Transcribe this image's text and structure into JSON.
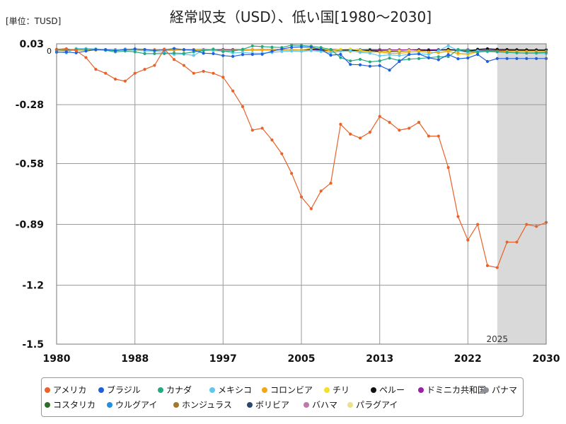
{
  "chart_data": {
    "type": "line",
    "title": "経常収支（USD）、低い国[1980～2030]",
    "unit_label": "[単位：TUSD]",
    "x_ticks": [
      1980,
      1988,
      1997,
      2005,
      2013,
      2022,
      2030
    ],
    "y_ticks": [
      {
        "value": 0.03,
        "label": "0.03"
      },
      {
        "value": -0.28,
        "label": "-0.28"
      },
      {
        "value": -0.58,
        "label": "-0.58"
      },
      {
        "value": -0.89,
        "label": "-0.89"
      },
      {
        "value": -1.2,
        "label": "-1.2"
      },
      {
        "value": -1.5,
        "label": "-1.5"
      }
    ],
    "xlim": [
      1980,
      2030
    ],
    "ylim": [
      -1.5,
      0.03
    ],
    "zero_label": "0",
    "forecast_start": 2025,
    "forecast_label": "2025",
    "grid": true,
    "legend_position": "bottom",
    "series": [
      {
        "name": "アメリカ",
        "color": "#e8622a",
        "values": [
          0.002,
          0.005,
          -0.005,
          -0.04,
          -0.1,
          -0.12,
          -0.15,
          -0.16,
          -0.12,
          -0.1,
          -0.08,
          0.003,
          -0.05,
          -0.08,
          -0.12,
          -0.11,
          -0.12,
          -0.14,
          -0.21,
          -0.29,
          -0.41,
          -0.4,
          -0.46,
          -0.53,
          -0.63,
          -0.75,
          -0.81,
          -0.72,
          -0.68,
          -0.38,
          -0.43,
          -0.45,
          -0.42,
          -0.34,
          -0.37,
          -0.41,
          -0.4,
          -0.37,
          -0.44,
          -0.44,
          -0.6,
          -0.85,
          -0.97,
          -0.89,
          -1.1,
          -1.11,
          -0.98,
          -0.98,
          -0.89,
          -0.9,
          -0.88
        ]
      },
      {
        "name": "ブラジル",
        "color": "#1f5fdc",
        "values": [
          -0.013,
          -0.012,
          -0.016,
          -0.007,
          0.0,
          -0.0,
          -0.005,
          -0.0,
          0.004,
          0.001,
          -0.004,
          -0.001,
          0.006,
          -0.0,
          -0.002,
          -0.018,
          -0.02,
          -0.03,
          -0.034,
          -0.025,
          -0.024,
          -0.023,
          -0.008,
          0.004,
          0.012,
          0.014,
          0.013,
          0.001,
          -0.028,
          -0.024,
          -0.075,
          -0.077,
          -0.084,
          -0.081,
          -0.104,
          -0.06,
          -0.024,
          -0.022,
          -0.041,
          -0.051,
          -0.025,
          -0.046,
          -0.042,
          -0.024,
          -0.06,
          -0.045,
          -0.045,
          -0.045,
          -0.045,
          -0.045,
          -0.045
        ]
      },
      {
        "name": "カナダ",
        "color": "#26a880",
        "values": [
          -0.002,
          -0.005,
          0.002,
          0.002,
          0.002,
          -0.003,
          -0.011,
          -0.007,
          -0.011,
          -0.02,
          -0.02,
          -0.02,
          -0.017,
          -0.019,
          -0.011,
          -0.004,
          0.003,
          -0.009,
          -0.007,
          0.002,
          0.019,
          0.016,
          0.013,
          0.011,
          0.023,
          0.022,
          0.018,
          0.011,
          0.001,
          -0.04,
          -0.057,
          -0.049,
          -0.062,
          -0.057,
          -0.043,
          -0.055,
          -0.048,
          -0.045,
          -0.041,
          -0.036,
          -0.035,
          0.001,
          -0.007,
          -0.013,
          -0.007,
          -0.01,
          -0.014,
          -0.016,
          -0.017,
          -0.016,
          -0.014
        ]
      },
      {
        "name": "メキシコ",
        "color": "#5ec8ee",
        "values": [
          -0.01,
          -0.016,
          0.006,
          0.006,
          0.004,
          0.001,
          -0.001,
          0.004,
          -0.002,
          -0.006,
          -0.007,
          -0.014,
          -0.024,
          -0.023,
          -0.029,
          -0.002,
          -0.003,
          -0.007,
          -0.016,
          -0.014,
          -0.018,
          -0.018,
          -0.014,
          -0.009,
          -0.007,
          -0.008,
          -0.005,
          -0.009,
          -0.016,
          -0.008,
          -0.005,
          -0.014,
          -0.018,
          -0.031,
          -0.026,
          -0.03,
          -0.024,
          -0.02,
          -0.024,
          -0.005,
          0.02,
          -0.004,
          -0.015,
          -0.006,
          -0.01,
          -0.012,
          -0.014,
          -0.016,
          -0.018,
          -0.019,
          -0.02
        ]
      },
      {
        "name": "コロンビア",
        "color": "#f0a818",
        "values": [
          0.0,
          -0.002,
          -0.003,
          -0.003,
          -0.002,
          -0.002,
          0.0,
          0.0,
          0.0,
          0.0,
          0.001,
          0.002,
          0.0,
          -0.002,
          -0.003,
          -0.004,
          -0.005,
          -0.006,
          -0.005,
          0.0,
          0.001,
          -0.001,
          -0.001,
          -0.001,
          -0.001,
          -0.002,
          -0.003,
          -0.006,
          -0.007,
          -0.005,
          -0.009,
          -0.009,
          -0.012,
          -0.012,
          -0.019,
          -0.019,
          -0.012,
          -0.01,
          -0.013,
          -0.015,
          -0.009,
          -0.018,
          -0.021,
          -0.009,
          -0.007,
          -0.008,
          -0.008,
          -0.009,
          -0.009,
          -0.009,
          -0.009
        ]
      },
      {
        "name": "チリ",
        "color": "#f2e02a",
        "values": [
          -0.002,
          -0.005,
          -0.002,
          -0.001,
          -0.002,
          -0.001,
          -0.001,
          -0.001,
          0.0,
          -0.001,
          -0.0,
          0.0,
          -0.001,
          -0.002,
          -0.001,
          -0.002,
          -0.004,
          -0.004,
          -0.004,
          0.0,
          -0.001,
          -0.001,
          -0.001,
          -0.001,
          0.002,
          0.001,
          0.007,
          0.007,
          -0.005,
          0.002,
          0.004,
          -0.003,
          -0.011,
          -0.012,
          -0.005,
          -0.006,
          -0.004,
          -0.006,
          -0.013,
          -0.015,
          -0.005,
          -0.023,
          -0.027,
          -0.011,
          -0.01,
          -0.009,
          -0.009,
          -0.009,
          -0.009,
          -0.009,
          -0.009
        ]
      },
      {
        "name": "ペルー",
        "color": "#111111",
        "values": [
          -0.0,
          -0.002,
          -0.002,
          -0.001,
          -0.0,
          0.0,
          -0.001,
          -0.001,
          -0.001,
          0.0,
          -0.001,
          -0.001,
          -0.002,
          -0.002,
          -0.002,
          -0.004,
          -0.003,
          -0.003,
          -0.003,
          -0.001,
          -0.001,
          -0.001,
          -0.001,
          -0.001,
          0.0,
          0.001,
          0.003,
          0.001,
          -0.004,
          -0.001,
          -0.003,
          -0.004,
          -0.005,
          -0.009,
          -0.008,
          -0.009,
          -0.005,
          -0.002,
          -0.004,
          -0.003,
          0.002,
          -0.005,
          -0.009,
          0.002,
          0.005,
          0.002,
          0.001,
          0.0,
          -0.001,
          -0.002,
          -0.002
        ]
      },
      {
        "name": "ドミニカ共和国",
        "color": "#9b1fa8",
        "values": [
          -0.001,
          -0.0,
          -0.0,
          -0.0,
          -0.0,
          -0.0,
          -0.0,
          -0.0,
          -0.0,
          -0.0,
          -0.0,
          -0.0,
          -0.001,
          -0.001,
          -0.0,
          -0.0,
          -0.0,
          -0.0,
          -0.0,
          -0.0,
          -0.001,
          -0.001,
          -0.001,
          0.001,
          0.001,
          -0.0,
          -0.001,
          -0.002,
          -0.004,
          -0.002,
          -0.004,
          -0.004,
          -0.004,
          -0.002,
          -0.002,
          -0.001,
          -0.001,
          -0.0,
          -0.001,
          -0.001,
          -0.001,
          -0.003,
          -0.006,
          -0.004,
          -0.003,
          -0.004,
          -0.004,
          -0.004,
          -0.004,
          -0.004,
          -0.004
        ]
      },
      {
        "name": "パナマ",
        "color": "#8a9097",
        "values": [
          -0.0,
          -0.0,
          -0.0,
          -0.0,
          -0.0,
          -0.0,
          -0.0,
          -0.0,
          0.0,
          0.0,
          0.0,
          -0.0,
          -0.0,
          -0.0,
          -0.0,
          -0.0,
          -0.0,
          -0.001,
          -0.001,
          -0.001,
          -0.001,
          -0.0,
          -0.0,
          -0.001,
          -0.001,
          -0.001,
          -0.0,
          -0.001,
          -0.002,
          -0.0,
          -0.003,
          -0.005,
          -0.004,
          -0.004,
          -0.006,
          -0.005,
          -0.004,
          -0.004,
          -0.005,
          -0.003,
          0.001,
          -0.001,
          -0.003,
          -0.002,
          -0.001,
          -0.001,
          -0.002,
          -0.002,
          -0.002,
          -0.002,
          -0.002
        ]
      },
      {
        "name": "コスタリカ",
        "color": "#2f6e28",
        "values": [
          -0.001,
          -0.0,
          -0.0,
          -0.0,
          -0.0,
          -0.0,
          -0.0,
          -0.0,
          -0.0,
          -0.0,
          -0.0,
          -0.0,
          -0.0,
          -0.0,
          -0.0,
          -0.0,
          -0.0,
          -0.0,
          -0.001,
          -0.001,
          -0.001,
          -0.001,
          -0.001,
          -0.001,
          -0.001,
          -0.001,
          -0.001,
          -0.002,
          -0.002,
          -0.001,
          -0.001,
          -0.002,
          -0.002,
          -0.002,
          -0.002,
          -0.002,
          -0.001,
          -0.002,
          -0.002,
          -0.001,
          -0.001,
          -0.002,
          -0.002,
          -0.001,
          -0.002,
          -0.002,
          -0.002,
          -0.002,
          -0.002,
          -0.002,
          -0.002
        ]
      },
      {
        "name": "ウルグアイ",
        "color": "#2290e0",
        "values": [
          -0.001,
          -0.0,
          -0.0,
          -0.0,
          -0.0,
          -0.0,
          -0.0,
          -0.0,
          0.0,
          0.0,
          0.0,
          0.0,
          -0.0,
          -0.0,
          -0.0,
          -0.0,
          -0.0,
          -0.0,
          -0.0,
          -0.0,
          -0.0,
          -0.0,
          0.0,
          -0.0,
          0.0,
          0.0,
          -0.0,
          -0.0,
          -0.001,
          -0.0,
          -0.001,
          -0.001,
          -0.002,
          -0.002,
          -0.002,
          -0.001,
          -0.0,
          0.0,
          -0.0,
          -0.0,
          -0.001,
          -0.001,
          -0.002,
          -0.002,
          -0.001,
          -0.001,
          -0.001,
          -0.001,
          -0.001,
          -0.001,
          -0.001
        ]
      },
      {
        "name": "ホンジュラス",
        "color": "#a07a2a",
        "values": [
          -0.0,
          -0.0,
          -0.0,
          -0.0,
          -0.0,
          -0.0,
          -0.0,
          -0.0,
          -0.0,
          -0.0,
          -0.0,
          -0.0,
          -0.0,
          -0.0,
          -0.0,
          -0.0,
          -0.0,
          -0.0,
          -0.0,
          -0.0,
          -0.0,
          -0.0,
          -0.0,
          -0.0,
          -0.0,
          -0.0,
          -0.0,
          -0.001,
          -0.002,
          -0.0,
          -0.001,
          -0.001,
          -0.001,
          -0.002,
          -0.001,
          -0.001,
          -0.001,
          -0.001,
          -0.001,
          -0.0,
          0.0,
          -0.001,
          -0.002,
          -0.001,
          -0.001,
          -0.001,
          -0.001,
          -0.001,
          -0.001,
          -0.001,
          -0.001
        ]
      },
      {
        "name": "ボリビア",
        "color": "#2c4670",
        "values": [
          -0.0,
          -0.0,
          -0.0,
          -0.0,
          -0.0,
          -0.0,
          -0.0,
          -0.0,
          -0.0,
          -0.0,
          -0.0,
          -0.0,
          -0.0,
          -0.0,
          -0.0,
          -0.0,
          -0.0,
          -0.0,
          -0.0,
          -0.0,
          -0.0,
          -0.0,
          -0.0,
          0.0,
          0.0,
          0.0,
          0.001,
          0.001,
          0.001,
          0.001,
          0.001,
          0.0,
          0.001,
          0.0,
          0.0,
          -0.002,
          -0.002,
          -0.002,
          -0.002,
          -0.001,
          -0.0,
          0.0,
          -0.0,
          -0.002,
          -0.001,
          -0.001,
          -0.001,
          -0.001,
          -0.001,
          -0.001,
          -0.001
        ]
      },
      {
        "name": "バハマ",
        "color": "#c078a8",
        "values": [
          -0.0,
          -0.0,
          -0.0,
          -0.0,
          -0.0,
          -0.0,
          -0.0,
          -0.0,
          -0.0,
          -0.0,
          -0.0,
          -0.0,
          -0.0,
          -0.0,
          -0.0,
          -0.0,
          -0.0,
          -0.0,
          -0.0,
          -0.0,
          -0.0,
          -0.0,
          -0.0,
          -0.0,
          -0.0,
          -0.0,
          -0.001,
          -0.001,
          -0.001,
          -0.001,
          -0.001,
          -0.001,
          -0.001,
          -0.001,
          -0.001,
          -0.001,
          -0.001,
          -0.0,
          -0.001,
          -0.0,
          -0.001,
          -0.002,
          -0.001,
          -0.0,
          -0.0,
          -0.0,
          -0.0,
          -0.0,
          -0.0,
          -0.0,
          -0.0
        ]
      },
      {
        "name": "パラグアイ",
        "color": "#ece08a",
        "values": [
          -0.0,
          -0.0,
          -0.0,
          -0.0,
          -0.0,
          -0.0,
          -0.0,
          -0.0,
          -0.0,
          -0.0,
          0.0,
          -0.0,
          -0.0,
          -0.0,
          -0.0,
          -0.0,
          -0.0,
          -0.0,
          -0.0,
          -0.0,
          -0.0,
          -0.0,
          0.0,
          0.0,
          0.0,
          0.0,
          0.0,
          0.0,
          -0.0,
          0.0,
          -0.0,
          0.0,
          -0.0,
          0.001,
          0.001,
          -0.0,
          0.001,
          0.0,
          -0.0,
          -0.0,
          0.001,
          -0.0,
          -0.002,
          -0.0,
          -0.0,
          -0.0,
          -0.0,
          -0.0,
          -0.0,
          -0.0,
          -0.0
        ]
      }
    ]
  }
}
